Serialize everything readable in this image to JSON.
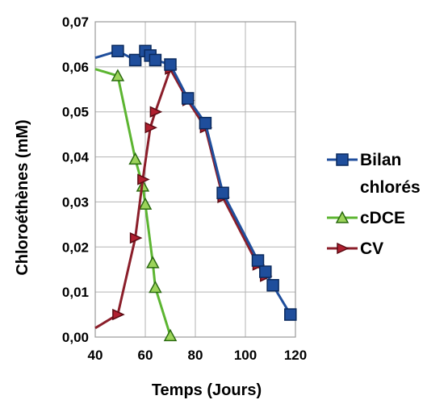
{
  "chart_data": {
    "type": "line",
    "title": "",
    "xlabel": "Temps (Jours)",
    "ylabel": "Chloroéthènes (mM)",
    "xlim": [
      40,
      120
    ],
    "ylim": [
      0,
      0.07
    ],
    "xticks": [
      40,
      60,
      80,
      100,
      120
    ],
    "xtick_labels": [
      "40",
      "60",
      "80",
      "100",
      "120"
    ],
    "yticks": [
      0,
      0.01,
      0.02,
      0.03,
      0.04,
      0.05,
      0.06,
      0.07
    ],
    "ytick_labels": [
      "0,00",
      "0,01",
      "0,02",
      "0,03",
      "0,04",
      "0,05",
      "0,06",
      "0,07"
    ],
    "grid": true,
    "legend_position": "right",
    "series": [
      {
        "name": "Bilan chlorés",
        "line_color": "#1f4e9c",
        "marker_fill": "#1f4e9c",
        "marker_stroke": "#0a2a5e",
        "marker": "square",
        "points": [
          {
            "x": 40,
            "y": 0.062,
            "marker": false
          },
          {
            "x": 49,
            "y": 0.0635,
            "marker": true
          },
          {
            "x": 56,
            "y": 0.0615,
            "marker": true
          },
          {
            "x": 60,
            "y": 0.0635,
            "marker": true
          },
          {
            "x": 62,
            "y": 0.0625,
            "marker": true
          },
          {
            "x": 64,
            "y": 0.0615,
            "marker": true
          },
          {
            "x": 70,
            "y": 0.0605,
            "marker": true
          },
          {
            "x": 77,
            "y": 0.053,
            "marker": true
          },
          {
            "x": 84,
            "y": 0.0475,
            "marker": true
          },
          {
            "x": 91,
            "y": 0.032,
            "marker": true
          },
          {
            "x": 105,
            "y": 0.017,
            "marker": true
          },
          {
            "x": 108,
            "y": 0.0145,
            "marker": true
          },
          {
            "x": 111,
            "y": 0.0115,
            "marker": true
          },
          {
            "x": 118,
            "y": 0.005,
            "marker": true
          }
        ]
      },
      {
        "name": "cDCE",
        "line_color": "#5cb531",
        "marker_fill": "#9cd45a",
        "marker_stroke": "#2a6a10",
        "marker": "triangle",
        "points": [
          {
            "x": 40,
            "y": 0.0595,
            "marker": false
          },
          {
            "x": 49,
            "y": 0.058,
            "marker": true
          },
          {
            "x": 56,
            "y": 0.0395,
            "marker": true
          },
          {
            "x": 59,
            "y": 0.0335,
            "marker": true
          },
          {
            "x": 60,
            "y": 0.0295,
            "marker": true
          },
          {
            "x": 63,
            "y": 0.0165,
            "marker": true
          },
          {
            "x": 64,
            "y": 0.011,
            "marker": true
          },
          {
            "x": 70,
            "y": 0.0003,
            "marker": true
          }
        ]
      },
      {
        "name": "CV",
        "line_color": "#8b1e2a",
        "marker_fill": "#b02030",
        "marker_stroke": "#5a0a12",
        "marker": "arrow-right",
        "points": [
          {
            "x": 40,
            "y": 0.002,
            "marker": false
          },
          {
            "x": 49,
            "y": 0.005,
            "marker": true
          },
          {
            "x": 56,
            "y": 0.022,
            "marker": true
          },
          {
            "x": 59,
            "y": 0.035,
            "marker": true
          },
          {
            "x": 62,
            "y": 0.0465,
            "marker": true
          },
          {
            "x": 64,
            "y": 0.05,
            "marker": true
          },
          {
            "x": 70,
            "y": 0.0595,
            "marker": true
          },
          {
            "x": 77,
            "y": 0.0525,
            "marker": true
          },
          {
            "x": 84,
            "y": 0.0465,
            "marker": true
          },
          {
            "x": 91,
            "y": 0.031,
            "marker": true
          },
          {
            "x": 105,
            "y": 0.016,
            "marker": true
          },
          {
            "x": 108,
            "y": 0.0135,
            "marker": true
          }
        ]
      }
    ],
    "legend": [
      {
        "series": 0,
        "lines": [
          "Bilan",
          "chlorés"
        ]
      },
      {
        "series": 1,
        "lines": [
          "cDCE"
        ]
      },
      {
        "series": 2,
        "lines": [
          "CV"
        ]
      }
    ]
  }
}
